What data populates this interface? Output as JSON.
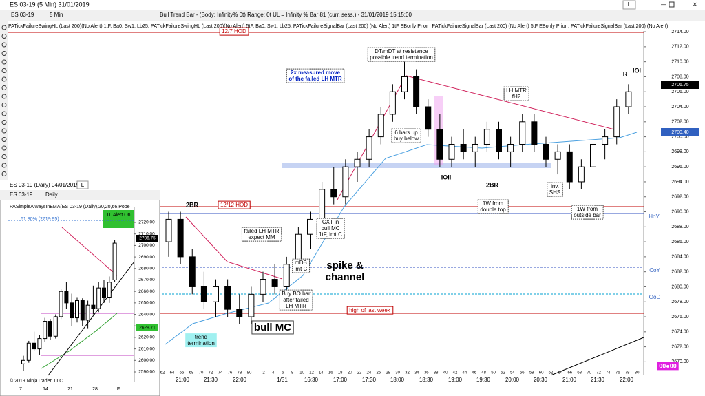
{
  "window": {
    "title": "ES 03-19 (5 Min) 31/01/2019",
    "button": "L"
  },
  "toolbar": {
    "instrument": "ES 03-19",
    "period": "5 Min",
    "status": "Bull Trend Bar - (Body: Infinity%  0t)    Range: 0t     UL = Infinity %    Bar 81 (curr. sess.) - 31/01/2019 15:15:00"
  },
  "indicators": "PATickFailureSwingHL (Last 200)(No Alert) 1tF,  Ba0,  Sw1,  Lb25, PATickFailureSwingHL (Last 200)(No Alert) 5tF,  Ba0,  Sw1,  Lb25, PATickFailureSignalBar (Last 200) (No Alert)  1tF  EBonly  Prior  , PATickFailureSignalBar (Last 200) (No Alert)  5tF  EBonly  Prior  , PATickFailureSignalBar (Last 200) (No Alert)",
  "main_chart": {
    "ylim": [
      2668.2,
      2714.1
    ],
    "yticks": [
      {
        "value": 2714,
        "label": "2714.00"
      },
      {
        "value": 2712,
        "label": "2712.00"
      },
      {
        "value": 2710,
        "label": "2710.00"
      },
      {
        "value": 2708,
        "label": "2708.00"
      },
      {
        "value": 2706,
        "label": "2706.00"
      },
      {
        "value": 2704,
        "label": "2704.00"
      },
      {
        "value": 2702,
        "label": "2702.00"
      },
      {
        "value": 2700,
        "label": "2700.00"
      },
      {
        "value": 2698,
        "label": "2698.00"
      },
      {
        "value": 2696,
        "label": "2696.00"
      },
      {
        "value": 2694,
        "label": "2694.00"
      },
      {
        "value": 2692,
        "label": "2692.00"
      },
      {
        "value": 2690,
        "label": "2690.00"
      },
      {
        "value": 2688,
        "label": "2688.00"
      },
      {
        "value": 2686,
        "label": "2686.00"
      },
      {
        "value": 2684,
        "label": "2684.00"
      },
      {
        "value": 2682,
        "label": "2682.00"
      },
      {
        "value": 2680,
        "label": "2680.00"
      },
      {
        "value": 2678,
        "label": "2678.00"
      },
      {
        "value": 2676,
        "label": "2676.00"
      },
      {
        "value": 2674,
        "label": "2674.00"
      },
      {
        "value": 2672,
        "label": "2672.00"
      },
      {
        "value": 2670,
        "label": "2670.00"
      }
    ],
    "price_labels": [
      "2706.75",
      "2700.40"
    ],
    "bar_numbers": [
      "62",
      "64",
      "66",
      "68",
      "70",
      "72",
      "74",
      "76",
      "78",
      "80",
      "2",
      "4",
      "6",
      "8",
      "10",
      "12",
      "14",
      "16",
      "18",
      "20",
      "22",
      "24",
      "26",
      "28",
      "30",
      "32",
      "34",
      "36",
      "38",
      "40",
      "42",
      "44",
      "46",
      "48",
      "50",
      "52",
      "54",
      "56",
      "58",
      "60",
      "62",
      "64",
      "66",
      "68",
      "70",
      "72",
      "74",
      "76",
      "78",
      "80"
    ],
    "times": [
      "21:00",
      "21:30",
      "22:00",
      "1/31",
      "16:30",
      "17:00",
      "17:30",
      "18:00",
      "18:30",
      "19:00",
      "19:30",
      "20:00",
      "20:30",
      "21:00",
      "21:30",
      "22:00"
    ],
    "candles": [
      [
        2686,
        2690,
        2684,
        2689
      ],
      [
        2689,
        2690,
        2683,
        2684
      ],
      [
        2684,
        2685,
        2679,
        2680
      ],
      [
        2680,
        2682,
        2677,
        2678
      ],
      [
        2678,
        2681,
        2676,
        2680
      ],
      [
        2680,
        2681,
        2676,
        2677
      ],
      [
        2677,
        2679,
        2675,
        2676
      ],
      [
        2676,
        2680,
        2675,
        2679
      ],
      [
        2679,
        2682,
        2678,
        2681
      ],
      [
        2681,
        2683,
        2679,
        2680
      ],
      [
        2680,
        2684,
        2679,
        2683
      ],
      [
        2683,
        2688,
        2682,
        2687
      ],
      [
        2687,
        2690,
        2685,
        2689
      ],
      [
        2689,
        2694,
        2688,
        2693
      ],
      [
        2693,
        2696,
        2691,
        2692
      ],
      [
        2692,
        2697,
        2691,
        2696
      ],
      [
        2696,
        2698,
        2694,
        2697
      ],
      [
        2697,
        2701,
        2696,
        2700
      ],
      [
        2700,
        2704,
        2699,
        2703
      ],
      [
        2703,
        2707,
        2702,
        2706
      ],
      [
        2706,
        2710,
        2705,
        2708
      ],
      [
        2708,
        2709,
        2703,
        2704
      ],
      [
        2704,
        2705,
        2700,
        2701
      ],
      [
        2701,
        2703,
        2696,
        2697
      ],
      [
        2697,
        2700,
        2696,
        2699
      ],
      [
        2699,
        2701,
        2697,
        2698
      ],
      [
        2698,
        2700,
        2696,
        2699
      ],
      [
        2699,
        2702,
        2698,
        2701
      ],
      [
        2701,
        2702,
        2697,
        2698
      ],
      [
        2698,
        2700,
        2696,
        2699
      ],
      [
        2699,
        2703,
        2698,
        2702
      ],
      [
        2702,
        2703,
        2698,
        2699
      ],
      [
        2699,
        2700,
        2696,
        2697
      ],
      [
        2697,
        2699,
        2695,
        2698
      ],
      [
        2698,
        2699,
        2693,
        2694
      ],
      [
        2694,
        2697,
        2693,
        2696
      ],
      [
        2696,
        2700,
        2695,
        2699
      ],
      [
        2699,
        2701,
        2697,
        2700
      ],
      [
        2700,
        2705,
        2699,
        2704
      ],
      [
        2704,
        2707,
        2703,
        2706
      ]
    ]
  },
  "annotations": [
    {
      "lines": [
        "12/7 HOD"
      ]
    },
    {
      "lines": [
        "2x measured move",
        "of the failed LH MTR"
      ]
    },
    {
      "lines": [
        "DT/mDT at resistance",
        "possible trend termination"
      ]
    },
    {
      "lines": [
        "LH MTR",
        "fH2"
      ]
    },
    {
      "lines": [
        "6 bars up",
        "buy below"
      ]
    },
    {
      "lines": [
        "IOII"
      ]
    },
    {
      "lines": [
        "2BR"
      ]
    },
    {
      "lines": [
        "1W from",
        "double top"
      ]
    },
    {
      "lines": [
        "inv.",
        "SHS"
      ]
    },
    {
      "lines": [
        "1W from",
        "outside bar"
      ]
    },
    {
      "lines": [
        "R"
      ]
    },
    {
      "lines": [
        "IOI"
      ]
    },
    {
      "lines": [
        "2BR"
      ]
    },
    {
      "lines": [
        "12/12 HOD"
      ]
    },
    {
      "lines": [
        "CXT in",
        "bull MC",
        "1tF, lmt C"
      ]
    },
    {
      "lines": [
        "failed LH MTR",
        "expect MM"
      ]
    },
    {
      "lines": [
        "mDB",
        "lmt C"
      ]
    },
    {
      "lines": [
        "spike &",
        "channel"
      ]
    },
    {
      "lines": [
        "Buy BO bar",
        "after failed",
        "LH MTR"
      ]
    },
    {
      "lines": [
        "high of last week"
      ]
    },
    {
      "lines": [
        "bull MC"
      ]
    },
    {
      "lines": [
        "trend",
        "termination"
      ]
    },
    {
      "lines": [
        "HoY"
      ]
    },
    {
      "lines": [
        "CoY"
      ]
    },
    {
      "lines": [
        "OoD"
      ]
    },
    {
      "lines": [
        "00●00"
      ]
    }
  ],
  "daily_window": {
    "title": "ES 03-19 (Daily) 04/01/2019",
    "button": "L",
    "instrument": "ES 03-19",
    "period": "Daily",
    "indicator": "PASimpleAlwaysInEMA(ES 03-19 (Daily),20,20,66,Pope",
    "fib": "61.80% (2719.95)",
    "alert": "TL Alert On",
    "price_labels": [
      "2706.75",
      "2628.71"
    ],
    "copyright": "© 2019 NinjaTrader, LLC",
    "ylim": [
      2585.2,
      2733.8
    ],
    "yticks": [
      {
        "value": 2720,
        "label": "2720.00"
      },
      {
        "value": 2710,
        "label": "2710.00"
      },
      {
        "value": 2700,
        "label": "2700.00"
      },
      {
        "value": 2690,
        "label": "2690.00"
      },
      {
        "value": 2680,
        "label": "2680.00"
      },
      {
        "value": 2670,
        "label": "2670.00"
      },
      {
        "value": 2660,
        "label": "2660.00"
      },
      {
        "value": 2650,
        "label": "2650.00"
      },
      {
        "value": 2640,
        "label": "2640.00"
      },
      {
        "value": 2630,
        "label": "2630.00"
      },
      {
        "value": 2620,
        "label": "2620.00"
      },
      {
        "value": 2610,
        "label": "2610.00"
      },
      {
        "value": 2600,
        "label": "2600.00"
      },
      {
        "value": 2590,
        "label": "2590.00"
      }
    ],
    "x_labels": [
      "7",
      "14",
      "21",
      "28",
      "F"
    ],
    "candles": [
      [
        2597,
        2604,
        2591,
        2600
      ],
      [
        2600,
        2617,
        2598,
        2615
      ],
      [
        2615,
        2625,
        2608,
        2610
      ],
      [
        2610,
        2622,
        2605,
        2619
      ],
      [
        2619,
        2637,
        2616,
        2634
      ],
      [
        2634,
        2636,
        2618,
        2621
      ],
      [
        2621,
        2640,
        2619,
        2638
      ],
      [
        2638,
        2662,
        2636,
        2660
      ],
      [
        2660,
        2668,
        2645,
        2650
      ],
      [
        2650,
        2658,
        2630,
        2637
      ],
      [
        2637,
        2655,
        2633,
        2652
      ],
      [
        2652,
        2654,
        2630,
        2635
      ],
      [
        2635,
        2652,
        2628,
        2648
      ],
      [
        2648,
        2665,
        2640,
        2645
      ],
      [
        2645,
        2668,
        2642,
        2663
      ],
      [
        2663,
        2670,
        2650,
        2655
      ],
      [
        2655,
        2673,
        2650,
        2668
      ],
      [
        2670,
        2705,
        2668,
        2702
      ]
    ]
  }
}
